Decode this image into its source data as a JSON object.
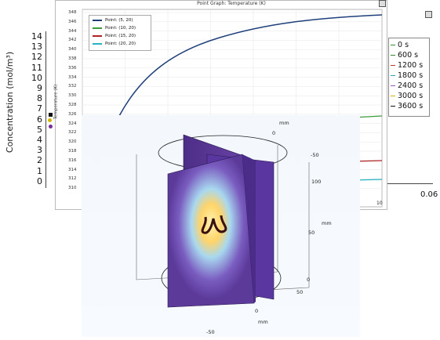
{
  "concentration_axis": {
    "label": "Concentration (mol/m³)",
    "ticks": [
      "14",
      "13",
      "12",
      "11",
      "10",
      "9",
      "8",
      "7",
      "6",
      "5",
      "4",
      "3",
      "2",
      "1",
      "0"
    ]
  },
  "bottom_right_tick": "0.06",
  "point_graph": {
    "title": "Point Graph: Temperature (K)",
    "ylabel": "Temperature (K)",
    "y_ticks": [
      "348",
      "346",
      "344",
      "342",
      "340",
      "338",
      "336",
      "334",
      "332",
      "330",
      "328",
      "326",
      "324",
      "322",
      "320",
      "318",
      "316",
      "314",
      "312",
      "310"
    ],
    "x_end_tick": "10",
    "legend": [
      {
        "label": "Point: (5, 20)",
        "color": "#1f3f7a"
      },
      {
        "label": "Point: (10, 20)",
        "color": "#3a9a3a"
      },
      {
        "label": "Point: (15, 20)",
        "color": "#b02222"
      },
      {
        "label": "Point: (20, 20)",
        "color": "#26b3c4"
      }
    ]
  },
  "time_legend": [
    {
      "label": "0 s",
      "color": "#2f8f2f"
    },
    {
      "label": "600 s",
      "color": "#2f8f2f"
    },
    {
      "label": "1200 s",
      "color": "#c0392b"
    },
    {
      "label": "1800 s",
      "color": "#2aa6b8"
    },
    {
      "label": "2400 s",
      "color": "#9b59b6"
    },
    {
      "label": "3000 s",
      "color": "#d4b400"
    },
    {
      "label": "3600 s",
      "color": "#111111"
    }
  ],
  "render_3d": {
    "unit_top": "mm",
    "unit_right": "mm",
    "unit_bottom": "mm",
    "labels": {
      "top_zero": "0",
      "top_minus50": "-50",
      "right_100": "100",
      "right_50": "50",
      "right_0": "0",
      "bottom_50": "50",
      "bottom_0": "0",
      "bottom_minus50": "-50"
    },
    "colors": {
      "slab": "#6a3fa0",
      "hot": "#ffe08a",
      "cold": "#5b3a9a"
    }
  }
}
